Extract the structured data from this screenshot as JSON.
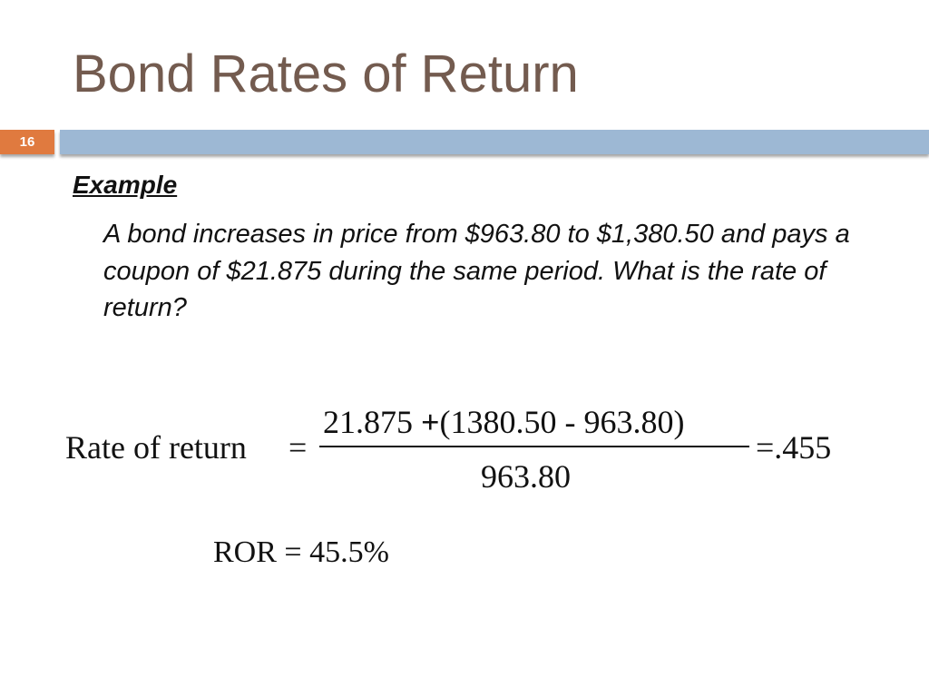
{
  "slide": {
    "title": "Bond Rates of Return",
    "number": "16",
    "heading": "Example",
    "paragraph": "A bond increases in price from $963.80 to $1,380.50 and pays a coupon of $21.875 during the same period. What is the rate of return?",
    "formula": {
      "lhs": "Rate of return",
      "equals": "=",
      "numerator": [
        "21.875",
        "+",
        "(1380.50",
        "-",
        "963.80)"
      ],
      "denominator": "963.80",
      "result": "=.455"
    },
    "conclusion": "ROR = 45.5%"
  }
}
